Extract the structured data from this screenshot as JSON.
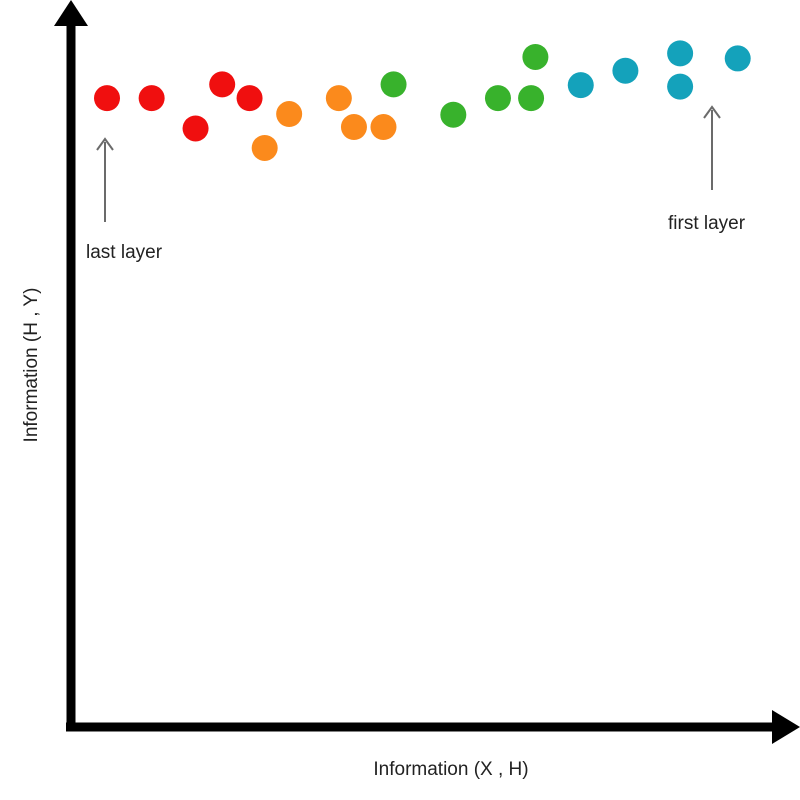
{
  "chart_data": {
    "type": "scatter",
    "title": "",
    "xlabel": "Information (X , H)",
    "ylabel": "Information (H , Y)",
    "xlim": [
      0,
      100
    ],
    "ylim": [
      0,
      100
    ],
    "grid": false,
    "axis_color": "#000000",
    "point_color_names": [
      "red",
      "orange",
      "green",
      "teal"
    ],
    "colors": {
      "red": "#f00f0f",
      "orange": "#fb8a1c",
      "green": "#38b22c",
      "teal": "#14a2bb"
    },
    "series": [
      {
        "color": "red",
        "points": [
          {
            "x": 5.0,
            "y": 87.1
          },
          {
            "x": 11.2,
            "y": 87.1
          },
          {
            "x": 17.3,
            "y": 82.9
          },
          {
            "x": 21.0,
            "y": 89.0
          },
          {
            "x": 24.8,
            "y": 87.1
          }
        ]
      },
      {
        "color": "orange",
        "points": [
          {
            "x": 26.9,
            "y": 80.2
          },
          {
            "x": 30.3,
            "y": 84.9
          },
          {
            "x": 37.2,
            "y": 87.1
          },
          {
            "x": 39.3,
            "y": 83.1
          },
          {
            "x": 43.4,
            "y": 83.1
          }
        ]
      },
      {
        "color": "green",
        "points": [
          {
            "x": 44.8,
            "y": 89.0
          },
          {
            "x": 53.1,
            "y": 84.8
          },
          {
            "x": 59.3,
            "y": 87.1
          },
          {
            "x": 63.9,
            "y": 87.1
          },
          {
            "x": 64.5,
            "y": 92.8
          }
        ]
      },
      {
        "color": "teal",
        "points": [
          {
            "x": 70.8,
            "y": 88.9
          },
          {
            "x": 77.0,
            "y": 90.9
          },
          {
            "x": 84.6,
            "y": 88.7
          },
          {
            "x": 84.6,
            "y": 93.3
          },
          {
            "x": 92.6,
            "y": 92.6
          }
        ]
      }
    ],
    "annotations": [
      {
        "text": "last layer",
        "x": 5.0,
        "y": 87.1
      },
      {
        "text": "first layer",
        "x": 92.6,
        "y": 92.6
      }
    ]
  }
}
